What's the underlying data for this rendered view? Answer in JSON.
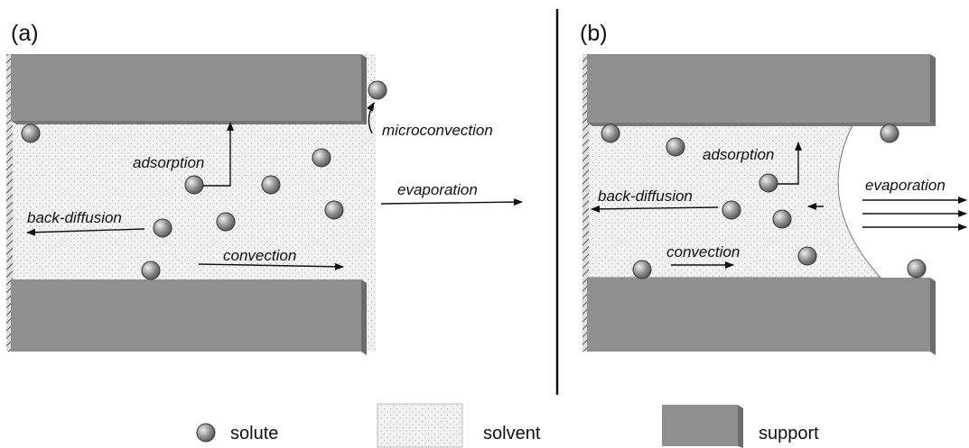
{
  "panels": [
    {
      "label": "(a)",
      "annotations": [
        "microconvection",
        "adsorption",
        "evaporation",
        "back-diffusion",
        "convection"
      ]
    },
    {
      "label": "(b)",
      "annotations": [
        "adsorption",
        "evaporation",
        "back-diffusion",
        "convection"
      ]
    }
  ],
  "legend": [
    {
      "label": "solute"
    },
    {
      "label": "solvent"
    },
    {
      "label": "support"
    }
  ]
}
